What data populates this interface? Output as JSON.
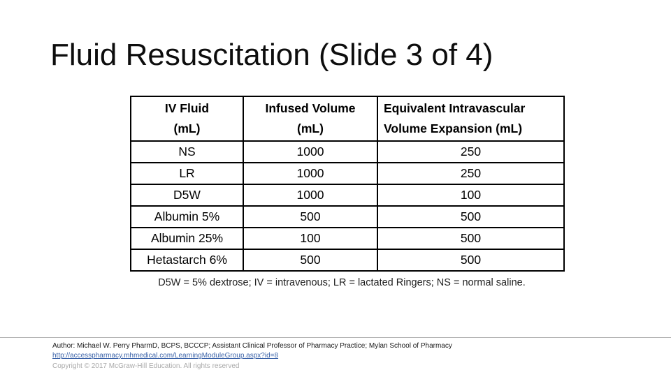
{
  "slide": {
    "title": "Fluid Resuscitation (Slide 3 of 4)"
  },
  "table": {
    "headers": [
      {
        "line1": "IV Fluid",
        "line2": "(mL)"
      },
      {
        "line1": "Infused Volume",
        "line2": "(mL)"
      },
      {
        "line1": "Equivalent Intravascular",
        "line2": "Volume Expansion (mL)"
      }
    ],
    "rows": [
      [
        "NS",
        "1000",
        "250"
      ],
      [
        "LR",
        "1000",
        "250"
      ],
      [
        "D5W",
        "1000",
        "100"
      ],
      [
        "Albumin 5%",
        "500",
        "500"
      ],
      [
        "Albumin 25%",
        "100",
        "500"
      ],
      [
        "Hetastarch 6%",
        "500",
        "500"
      ]
    ]
  },
  "footnote": "D5W = 5% dextrose; IV = intravenous; LR = lactated Ringers; NS = normal saline.",
  "footer": {
    "author": "Author: Michael W. Perry PharmD, BCPS, BCCCP; Assistant Clinical Professor of Pharmacy Practice; Mylan School of Pharmacy",
    "link": "http://accesspharmacy.mhmedical.com/LearningModuleGroup.aspx?id=8",
    "copyright": "Copyright © 2017 McGraw-Hill Education. All rights reserved"
  },
  "colors": {
    "background": "#ffffff",
    "text": "#000000",
    "table_border": "#000000",
    "link_blue": "#3a62a8",
    "copyright_gray": "#a9a9a9",
    "divider_gray": "#b0b0b0"
  }
}
